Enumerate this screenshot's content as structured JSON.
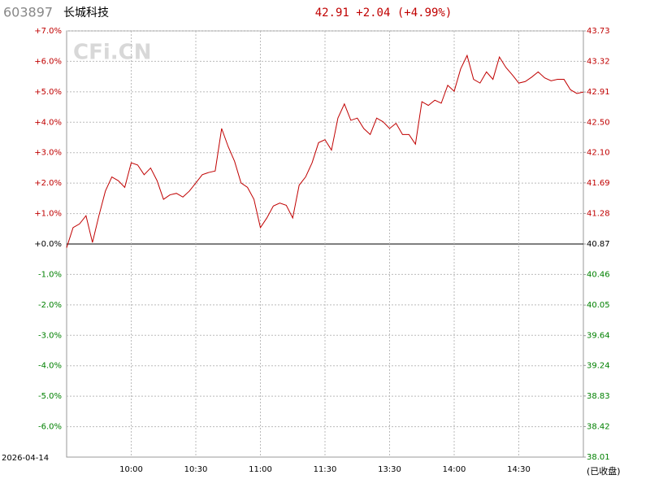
{
  "chart_data": {
    "type": "line",
    "code": "603897",
    "name": "长城科技",
    "annotations": [
      "42.91 +2.04 (+4.99%)"
    ],
    "watermark": "CFi.CN",
    "date": "2026-04-14",
    "status": "(已收盘)",
    "up_color": "#c00000",
    "down_color": "#008000",
    "flat_color": "#000000",
    "grid": true,
    "x": [
      "09:30",
      "09:33",
      "09:36",
      "09:39",
      "09:42",
      "09:45",
      "09:48",
      "09:51",
      "09:54",
      "09:57",
      "10:00",
      "10:03",
      "10:06",
      "10:09",
      "10:12",
      "10:15",
      "10:18",
      "10:21",
      "10:24",
      "10:27",
      "10:30",
      "10:33",
      "10:36",
      "10:39",
      "10:42",
      "10:45",
      "10:48",
      "10:51",
      "10:54",
      "10:57",
      "11:00",
      "11:03",
      "11:06",
      "11:09",
      "11:12",
      "11:15",
      "11:18",
      "11:21",
      "11:24",
      "11:27",
      "11:30",
      "13:03",
      "13:06",
      "13:09",
      "13:12",
      "13:15",
      "13:18",
      "13:21",
      "13:24",
      "13:27",
      "13:30",
      "13:33",
      "13:36",
      "13:39",
      "13:42",
      "13:45",
      "13:48",
      "13:51",
      "13:54",
      "13:57",
      "14:00",
      "14:03",
      "14:06",
      "14:09",
      "14:12",
      "14:15",
      "14:18",
      "14:21",
      "14:24",
      "14:27",
      "14:30",
      "14:33",
      "14:36",
      "14:39",
      "14:42",
      "14:45",
      "14:48",
      "14:51",
      "14:54",
      "14:57",
      "15:00"
    ],
    "xlim": [
      "09:30",
      "15:00"
    ],
    "xticks": [
      "10:00",
      "10:30",
      "11:00",
      "11:30",
      "13:30",
      "14:00",
      "14:30"
    ],
    "series": [
      {
        "axis": "y2",
        "color": "#c00000",
        "values": [
          40.82,
          41.09,
          41.14,
          41.25,
          40.89,
          41.25,
          41.58,
          41.77,
          41.72,
          41.63,
          41.96,
          41.93,
          41.8,
          41.89,
          41.72,
          41.47,
          41.53,
          41.55,
          41.5,
          41.58,
          41.69,
          41.8,
          41.83,
          41.85,
          42.42,
          42.18,
          41.98,
          41.69,
          41.63,
          41.47,
          41.09,
          41.22,
          41.38,
          41.42,
          41.39,
          41.22,
          41.66,
          41.77,
          41.96,
          42.23,
          42.27,
          42.13,
          42.56,
          42.75,
          42.53,
          42.56,
          42.42,
          42.34,
          42.56,
          42.51,
          42.42,
          42.49,
          42.34,
          42.34,
          42.21,
          42.78,
          42.73,
          42.8,
          42.76,
          43.0,
          42.92,
          43.22,
          43.4,
          43.08,
          43.03,
          43.18,
          43.08,
          43.38,
          43.24,
          43.14,
          43.03,
          43.05,
          43.11,
          43.18,
          43.1,
          43.06,
          43.08,
          43.08,
          42.94,
          42.89,
          42.91
        ]
      }
    ],
    "ylim": [
      -7,
      7
    ],
    "yticks": [
      {
        "value": 7,
        "label": "+7.0%"
      },
      {
        "value": 6,
        "label": "+6.0%"
      },
      {
        "value": 5,
        "label": "+5.0%"
      },
      {
        "value": 4,
        "label": "+4.0%"
      },
      {
        "value": 3,
        "label": "+3.0%"
      },
      {
        "value": 2,
        "label": "+2.0%"
      },
      {
        "value": 1,
        "label": "+1.0%"
      },
      {
        "value": 0,
        "label": "+0.0%"
      },
      {
        "value": -1,
        "label": "-1.0%"
      },
      {
        "value": -2,
        "label": "-2.0%"
      },
      {
        "value": -3,
        "label": "-3.0%"
      },
      {
        "value": -4,
        "label": "-4.0%"
      },
      {
        "value": -5,
        "label": "-5.0%"
      },
      {
        "value": -6,
        "label": "-6.0%"
      }
    ],
    "y2lim": [
      38.01,
      43.73
    ],
    "y2ticks": [
      43.73,
      43.32,
      42.91,
      {
        "value": 42.5,
        "label": "42.50"
      },
      {
        "value": 42.1,
        "label": "42.10"
      },
      41.69,
      41.28,
      40.87,
      40.46,
      40.05,
      39.64,
      39.24,
      38.83,
      38.42,
      38.01
    ]
  }
}
